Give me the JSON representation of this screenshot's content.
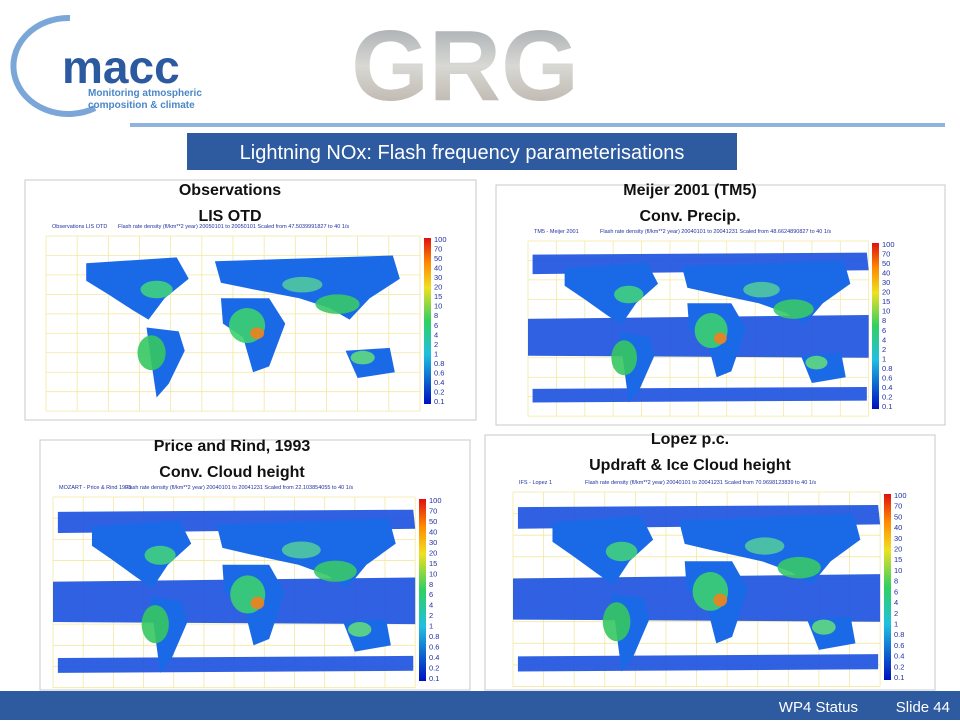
{
  "logo": {
    "name": "macc",
    "tagline_1": "Monitoring atmospheric",
    "tagline_2": "composition & climate"
  },
  "partner_logo": "GRG",
  "slide_title": "Lightning NOx: Flash frequency parameterisations",
  "panels": [
    {
      "title_1": "Observations",
      "title_2": "LIS OTD",
      "map_label": "Observations LIS OTD",
      "map_caption": "Flash rate density (fl/km**2 year) 20050101 to 20050101 Scaled from 47.5039991827 to 40 1/s"
    },
    {
      "title_1": "Meijer 2001 (TM5)",
      "title_2": "Conv. Precip.",
      "map_label": "TM5 - Meijer 2001",
      "map_caption": "Flash rate density (fl/km**2 year) 20040101 to 20041231 Scaled from 48.6624890827 to 40 1/s"
    },
    {
      "title_1": "Price and Rind, 1993",
      "title_2": "Conv. Cloud height",
      "map_label": "MOZART - Price & Rind 1993",
      "map_caption": "Flash rate density (fl/km**2 year) 20040101 to 20041231 Scaled from 22.103854055 to 40 1/s"
    },
    {
      "title_1": "Lopez p.c.",
      "title_2": "Updraft & Ice Cloud height",
      "map_label": "IFS - Lopez 1",
      "map_caption": "Flash rate density (fl/km**2 year) 20040101 to 20041231 Scaled from 70.9698123839 to 40 1/s"
    }
  ],
  "colorbar_labels": [
    "100",
    "70",
    "50",
    "40",
    "30",
    "20",
    "15",
    "10",
    "8",
    "6",
    "4",
    "2",
    "1",
    "0.8",
    "0.6",
    "0.4",
    "0.2",
    "0.1"
  ],
  "footer": {
    "section": "WP4 Status",
    "slide": "Slide 44"
  }
}
